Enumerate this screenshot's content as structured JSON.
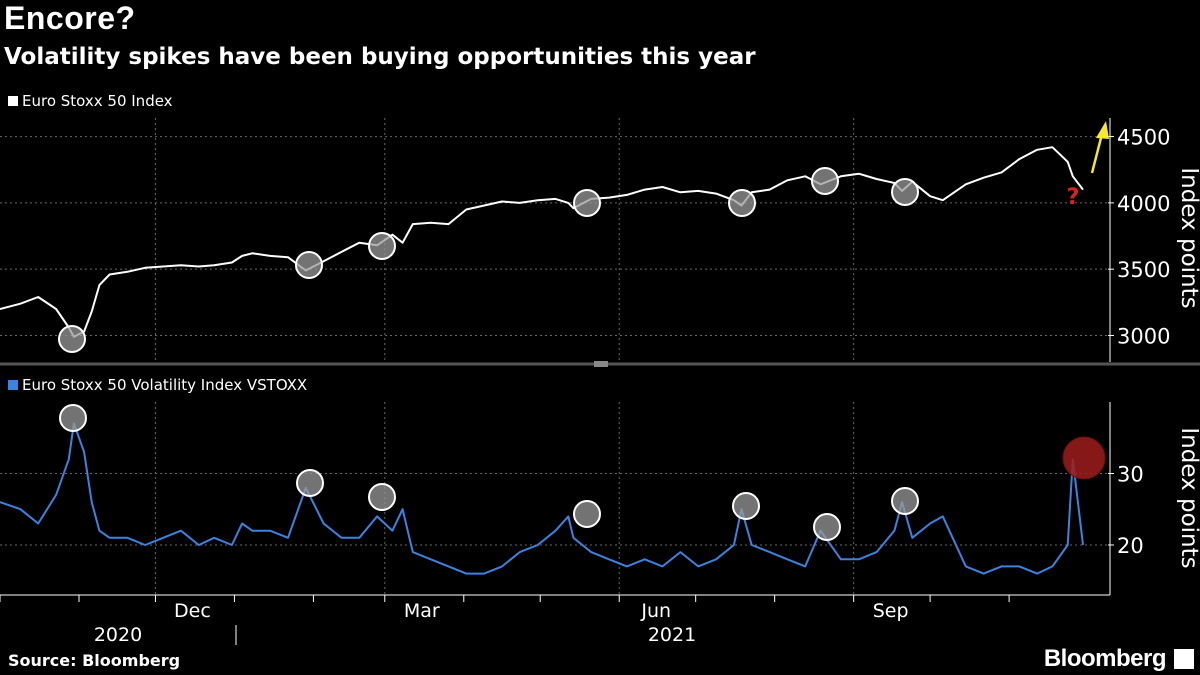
{
  "header": {
    "title": "Encore?",
    "subtitle": "Volatility spikes have been buying opportunities this year"
  },
  "footer": {
    "source": "Source: Bloomberg",
    "brand": "Bloomberg"
  },
  "colors": {
    "index_line": "#ffffff",
    "vol_line": "#3b83e0",
    "marker_fill": "#9a9a9a",
    "alert_fill": "#9e1c1c",
    "arrow": "#f7ea2a",
    "question": "#e02020"
  },
  "annotations": {
    "question_mark": "?"
  },
  "chart_data": [
    {
      "type": "line",
      "legend": "Euro Stoxx 50 Index",
      "ylabel": "Index points",
      "ylim": [
        2800,
        4640
      ],
      "yticks": [
        3000,
        3500,
        4000,
        4500
      ],
      "grid": true,
      "series": [
        {
          "name": "Euro Stoxx 50 Index",
          "x": [
            "2020-10-01",
            "2020-10-09",
            "2020-10-16",
            "2020-10-23",
            "2020-10-28",
            "2020-10-30",
            "2020-11-03",
            "2020-11-06",
            "2020-11-09",
            "2020-11-13",
            "2020-11-20",
            "2020-11-27",
            "2020-12-04",
            "2020-12-11",
            "2020-12-18",
            "2020-12-24",
            "2020-12-31",
            "2021-01-04",
            "2021-01-08",
            "2021-01-15",
            "2021-01-22",
            "2021-01-29",
            "2021-02-05",
            "2021-02-12",
            "2021-02-19",
            "2021-02-26",
            "2021-03-04",
            "2021-03-08",
            "2021-03-12",
            "2021-03-19",
            "2021-03-26",
            "2021-04-02",
            "2021-04-09",
            "2021-04-16",
            "2021-04-23",
            "2021-04-30",
            "2021-05-07",
            "2021-05-12",
            "2021-05-14",
            "2021-05-21",
            "2021-05-28",
            "2021-06-04",
            "2021-06-11",
            "2021-06-18",
            "2021-06-25",
            "2021-07-02",
            "2021-07-09",
            "2021-07-16",
            "2021-07-19",
            "2021-07-23",
            "2021-07-30",
            "2021-08-06",
            "2021-08-13",
            "2021-08-19",
            "2021-08-27",
            "2021-09-03",
            "2021-09-10",
            "2021-09-17",
            "2021-09-20",
            "2021-09-24",
            "2021-10-01",
            "2021-10-06",
            "2021-10-15",
            "2021-10-22",
            "2021-10-29",
            "2021-11-05",
            "2021-11-12",
            "2021-11-18",
            "2021-11-24",
            "2021-11-26",
            "2021-11-30"
          ],
          "values": [
            3200,
            3240,
            3290,
            3200,
            3060,
            2990,
            3030,
            3180,
            3380,
            3460,
            3480,
            3510,
            3520,
            3530,
            3520,
            3530,
            3550,
            3600,
            3620,
            3600,
            3590,
            3490,
            3560,
            3630,
            3700,
            3680,
            3760,
            3700,
            3840,
            3850,
            3840,
            3950,
            3980,
            4010,
            4000,
            4020,
            4030,
            4000,
            3960,
            4030,
            4040,
            4060,
            4100,
            4120,
            4080,
            4090,
            4070,
            4020,
            3980,
            4080,
            4100,
            4170,
            4200,
            4140,
            4200,
            4220,
            4180,
            4150,
            4090,
            4160,
            4050,
            4020,
            4140,
            4190,
            4230,
            4330,
            4400,
            4420,
            4310,
            4200,
            4100
          ]
        }
      ]
    },
    {
      "type": "line",
      "legend": "Euro Stoxx 50 Volatility Index VSTOXX",
      "ylabel": "Index points",
      "ylim": [
        13,
        40
      ],
      "yticks": [
        20,
        30
      ],
      "grid": true,
      "series": [
        {
          "name": "Euro Stoxx 50 Volatility Index VSTOXX",
          "x": [
            "2020-10-01",
            "2020-10-09",
            "2020-10-16",
            "2020-10-23",
            "2020-10-28",
            "2020-10-30",
            "2020-11-03",
            "2020-11-06",
            "2020-11-09",
            "2020-11-13",
            "2020-11-20",
            "2020-11-27",
            "2020-12-04",
            "2020-12-11",
            "2020-12-18",
            "2020-12-24",
            "2020-12-31",
            "2021-01-04",
            "2021-01-08",
            "2021-01-15",
            "2021-01-22",
            "2021-01-29",
            "2021-02-05",
            "2021-02-12",
            "2021-02-19",
            "2021-02-26",
            "2021-03-04",
            "2021-03-08",
            "2021-03-12",
            "2021-03-19",
            "2021-03-26",
            "2021-04-02",
            "2021-04-09",
            "2021-04-16",
            "2021-04-23",
            "2021-04-30",
            "2021-05-07",
            "2021-05-12",
            "2021-05-14",
            "2021-05-21",
            "2021-05-28",
            "2021-06-04",
            "2021-06-11",
            "2021-06-18",
            "2021-06-25",
            "2021-07-02",
            "2021-07-09",
            "2021-07-16",
            "2021-07-19",
            "2021-07-23",
            "2021-07-30",
            "2021-08-06",
            "2021-08-13",
            "2021-08-19",
            "2021-08-27",
            "2021-09-03",
            "2021-09-10",
            "2021-09-17",
            "2021-09-20",
            "2021-09-24",
            "2021-10-01",
            "2021-10-06",
            "2021-10-15",
            "2021-10-22",
            "2021-10-29",
            "2021-11-05",
            "2021-11-12",
            "2021-11-18",
            "2021-11-24",
            "2021-11-26",
            "2021-11-30"
          ],
          "values": [
            26,
            25,
            23,
            27,
            32,
            37,
            33,
            26,
            22,
            21,
            21,
            20,
            21,
            22,
            20,
            21,
            20,
            23,
            22,
            22,
            21,
            28,
            23,
            21,
            21,
            24,
            22,
            25,
            19,
            18,
            17,
            16,
            16,
            17,
            19,
            20,
            22,
            24,
            21,
            19,
            18,
            17,
            18,
            17,
            19,
            17,
            18,
            20,
            25,
            20,
            19,
            18,
            17,
            22,
            18,
            18,
            19,
            22,
            26,
            21,
            23,
            24,
            17,
            16,
            17,
            17,
            16,
            17,
            20,
            32,
            20
          ]
        }
      ]
    }
  ],
  "xaxis": {
    "months": [
      "Dec",
      "Mar",
      "Jun",
      "Sep"
    ],
    "years": [
      "2020",
      "2021"
    ]
  }
}
